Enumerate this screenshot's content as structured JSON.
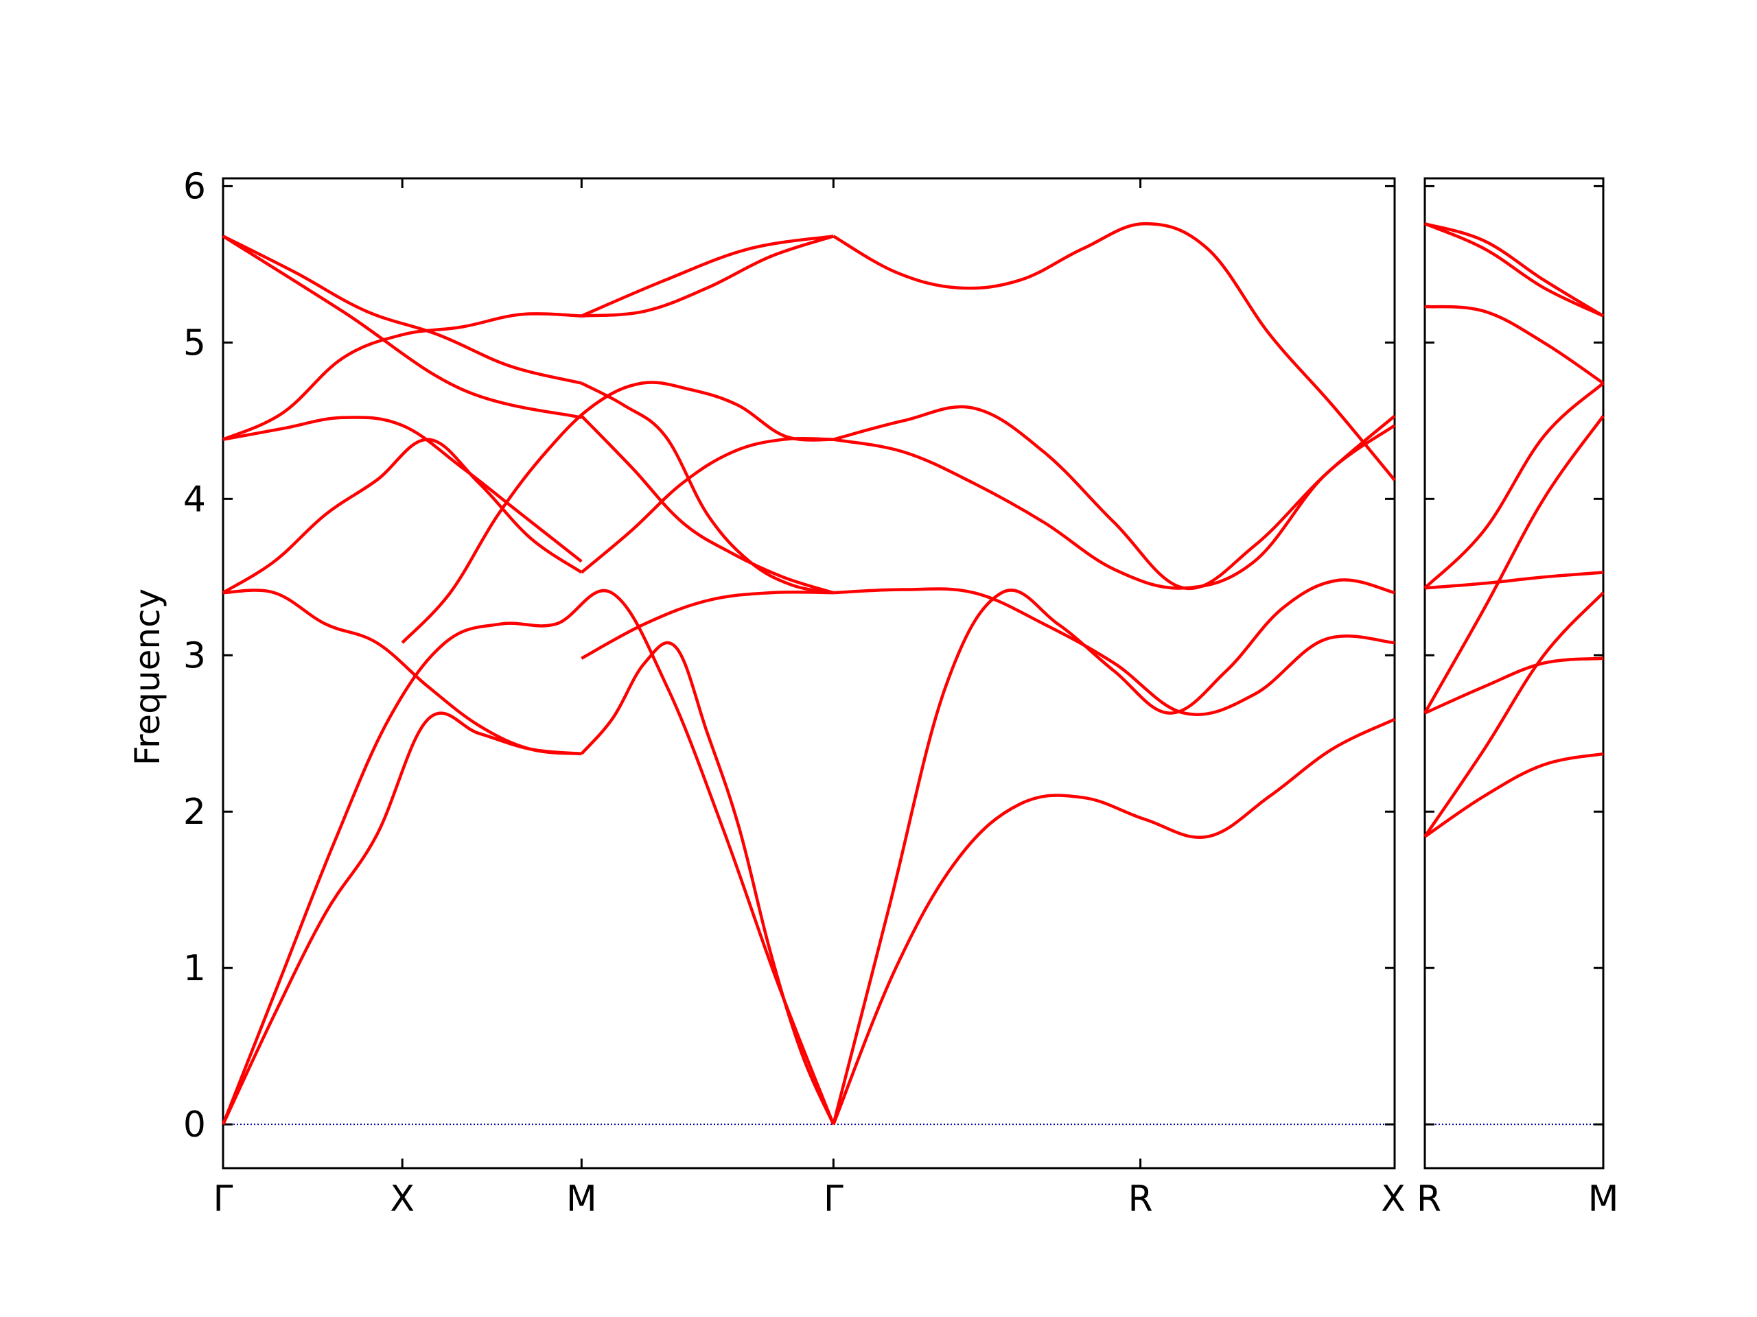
{
  "chart_data": {
    "type": "line",
    "ylabel": "Frequency",
    "ylim": [
      -0.28,
      6.05
    ],
    "yticks": [
      0,
      1,
      2,
      3,
      4,
      5,
      6
    ],
    "grid": false,
    "legend": "none",
    "colors": {
      "bands": "#ff0000",
      "zero_line": "#0000aa",
      "axes": "#000000"
    },
    "panels": [
      {
        "name": "panel-main",
        "path_labels": [
          "Γ",
          "X",
          "M",
          "Γ",
          "R",
          "X"
        ],
        "endpoints": {
          "0": [
            0,
            0,
            0,
            3.4,
            3.4,
            3.4,
            4.38,
            4.38,
            4.38,
            5.68,
            5.68,
            5.68
          ],
          "1": [
            2.59,
            2.59,
            3.08,
            3.08,
            3.4,
            4.12,
            4.47,
            4.52,
            5.05,
            5.05,
            5.05,
            5.05
          ],
          "2": [
            2.37,
            2.37,
            2.98,
            3.4,
            3.53,
            4.53,
            4.74,
            4.74,
            4.74,
            5.17,
            5.17,
            5.17
          ],
          "3": [
            0,
            0,
            0,
            3.4,
            3.4,
            3.4,
            4.38,
            4.38,
            4.38,
            5.68,
            5.68,
            5.68
          ],
          "4": [
            1.84,
            1.84,
            1.84,
            2.63,
            2.63,
            3.43,
            3.43,
            3.43,
            5.23,
            5.76,
            5.76,
            5.76
          ],
          "5": [
            2.59,
            2.59,
            3.08,
            3.08,
            3.4,
            4.12,
            4.47,
            4.52,
            5.05,
            5.05,
            5.05,
            5.05
          ]
        },
        "bands": [
          [
            0.0,
            0.7,
            1.35,
            1.85,
            2.59,
            2.5,
            2.4,
            2.37
          ],
          [
            0.0,
            0.9,
            1.8,
            2.6,
            3.08,
            3.2,
            3.2,
            3.4,
            2.8,
            1.9,
            0.9,
            0.0
          ],
          [
            3.4,
            3.4,
            3.2,
            3.08,
            2.8,
            2.55,
            2.4,
            2.37
          ],
          [
            3.4,
            3.6,
            3.9,
            4.12,
            4.38,
            4.1,
            3.75,
            3.53
          ],
          [
            4.38,
            4.45,
            4.52,
            4.47,
            4.2,
            3.9,
            3.6
          ],
          [
            4.38,
            4.55,
            4.9,
            5.05,
            5.1,
            5.18,
            5.17
          ],
          [
            5.68,
            5.45,
            5.2,
            5.05,
            4.85,
            4.74
          ],
          [
            5.68,
            5.2,
            4.7,
            4.52
          ],
          [
            2.37,
            2.6,
            2.95,
            3.05,
            2.5,
            1.9,
            1.1,
            0.45,
            0.0
          ],
          [
            3.08,
            3.4,
            3.9,
            4.3,
            4.6,
            4.74,
            4.7,
            4.6,
            4.4,
            4.38
          ],
          [
            2.98,
            3.2,
            3.35,
            3.4,
            3.4
          ],
          [
            3.53,
            3.8,
            4.1,
            4.3,
            4.38,
            4.38
          ],
          [
            4.74,
            4.6,
            4.4,
            3.9,
            3.6,
            3.45,
            3.4
          ],
          [
            5.17,
            5.2,
            5.35,
            5.55,
            5.68
          ],
          [
            5.17,
            5.4,
            5.6,
            5.68
          ],
          [
            4.53,
            4.2,
            3.85,
            3.65,
            3.5,
            3.4
          ],
          [
            0.0,
            1.0,
            1.7,
            2.05,
            2.09,
            1.95,
            1.84,
            2.1,
            2.4,
            2.59
          ],
          [
            0.0,
            1.4,
            2.8,
            3.4,
            3.2,
            2.9,
            2.63,
            2.9,
            3.3,
            3.48,
            3.4
          ],
          [
            3.4,
            3.42,
            3.4,
            3.2,
            2.95,
            2.63,
            2.75,
            3.1,
            3.08
          ],
          [
            4.38,
            4.5,
            4.58,
            4.3,
            3.85,
            3.43,
            3.7,
            4.15,
            4.53
          ],
          [
            4.38,
            4.3,
            4.1,
            3.85,
            3.55,
            3.43,
            3.6,
            4.15,
            4.47
          ],
          [
            5.68,
            5.45,
            5.35,
            5.4,
            5.6,
            5.76,
            5.6,
            5.05,
            4.6,
            4.12
          ]
        ]
      },
      {
        "name": "panel-side",
        "path_labels": [
          "R",
          "M"
        ],
        "bands": [
          [
            1.84,
            2.1,
            2.3,
            2.37
          ],
          [
            2.63,
            2.8,
            2.95,
            2.98
          ],
          [
            1.84,
            2.4,
            3.0,
            3.4
          ],
          [
            2.63,
            3.3,
            4.0,
            4.53
          ],
          [
            3.43,
            3.46,
            3.5,
            3.53
          ],
          [
            3.43,
            3.8,
            4.4,
            4.74
          ],
          [
            5.23,
            5.2,
            5.0,
            4.74
          ],
          [
            5.76,
            5.6,
            5.35,
            5.17
          ],
          [
            5.76,
            5.65,
            5.4,
            5.17
          ]
        ]
      }
    ]
  }
}
